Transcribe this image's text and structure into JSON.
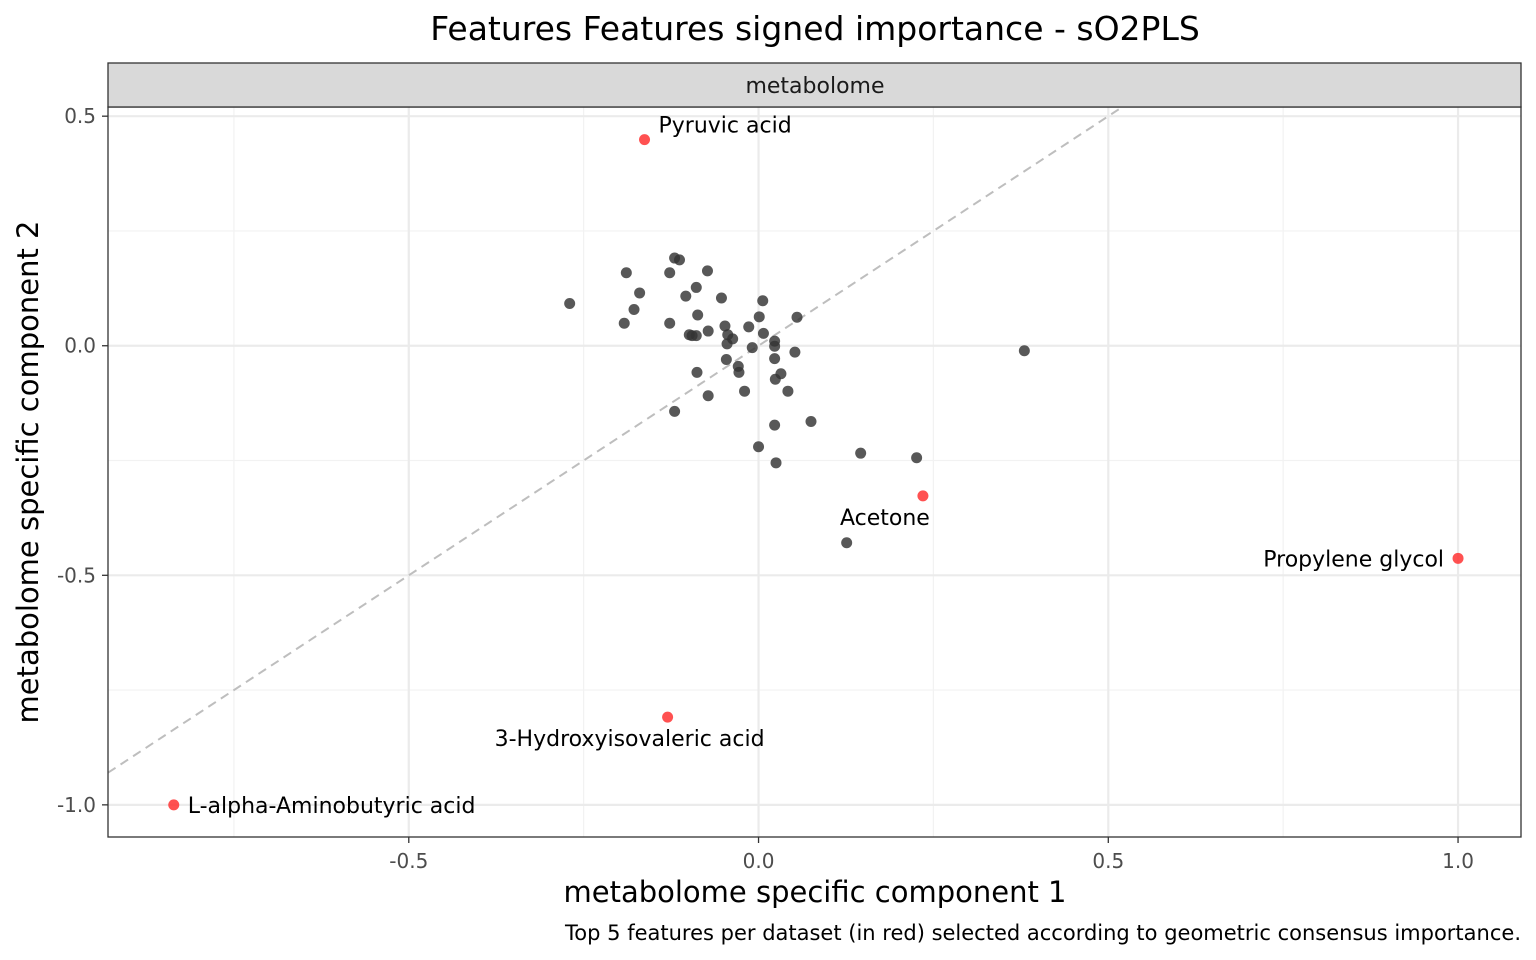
{
  "chart_data": {
    "type": "scatter",
    "title": "Features Features signed importance - sO2PLS",
    "facet": "metabolome",
    "xlabel": "metabolome specific component 1",
    "ylabel": "metabolome specific component 2",
    "caption": "Top 5 features per dataset (in red) selected according to geometric consensus importance.",
    "xlim": [
      -0.93,
      1.09
    ],
    "ylim": [
      -1.07,
      0.52
    ],
    "x_ticks": [
      -0.5,
      0.0,
      0.5,
      1.0
    ],
    "x_tick_labels": [
      "-0.5",
      "0.0",
      "0.5",
      "1.0"
    ],
    "y_ticks": [
      -1.0,
      -0.5,
      0.0,
      0.5
    ],
    "y_tick_labels": [
      "-1.0",
      "-0.5",
      "0.0",
      "0.5"
    ],
    "grid": true,
    "reference_line": {
      "style": "dashed",
      "color": "#bebebe",
      "intercept": 0.0,
      "slope": 1.0
    },
    "colors": {
      "highlight": "#ff3333",
      "default": "#333333"
    },
    "highlighted_points": [
      {
        "label": "Pyruvic acid",
        "x": -0.163,
        "y": 0.449
      },
      {
        "label": "Acetone",
        "x": 0.235,
        "y": -0.327
      },
      {
        "label": "Propylene glycol",
        "x": 1.0,
        "y": -0.463
      },
      {
        "label": "3-Hydroxyisovaleric acid",
        "x": -0.13,
        "y": -0.809
      },
      {
        "label": "L-alpha-Aminobutyric acid",
        "x": -0.836,
        "y": -1.0
      }
    ],
    "points": [
      {
        "x": -0.27,
        "y": 0.092
      },
      {
        "x": -0.189,
        "y": 0.159
      },
      {
        "x": -0.17,
        "y": 0.115
      },
      {
        "x": -0.178,
        "y": 0.079
      },
      {
        "x": -0.192,
        "y": 0.049
      },
      {
        "x": -0.127,
        "y": 0.159
      },
      {
        "x": -0.12,
        "y": 0.191
      },
      {
        "x": -0.113,
        "y": 0.187
      },
      {
        "x": -0.073,
        "y": 0.163
      },
      {
        "x": -0.089,
        "y": 0.127
      },
      {
        "x": -0.104,
        "y": 0.108
      },
      {
        "x": -0.053,
        "y": 0.104
      },
      {
        "x": 0.006,
        "y": 0.098
      },
      {
        "x": -0.087,
        "y": 0.067
      },
      {
        "x": -0.127,
        "y": 0.049
      },
      {
        "x": -0.072,
        "y": 0.032
      },
      {
        "x": -0.099,
        "y": 0.024
      },
      {
        "x": -0.095,
        "y": 0.022
      },
      {
        "x": -0.089,
        "y": 0.022
      },
      {
        "x": -0.048,
        "y": 0.043
      },
      {
        "x": -0.044,
        "y": 0.024
      },
      {
        "x": -0.045,
        "y": 0.004
      },
      {
        "x": -0.037,
        "y": 0.015
      },
      {
        "x": -0.014,
        "y": 0.041
      },
      {
        "x": 0.001,
        "y": 0.063
      },
      {
        "x": 0.055,
        "y": 0.062
      },
      {
        "x": 0.007,
        "y": 0.027
      },
      {
        "x": 0.023,
        "y": 0.01
      },
      {
        "x": 0.023,
        "y": -0.001
      },
      {
        "x": -0.009,
        "y": -0.004
      },
      {
        "x": 0.052,
        "y": -0.014
      },
      {
        "x": 0.023,
        "y": -0.028
      },
      {
        "x": -0.046,
        "y": -0.03
      },
      {
        "x": -0.029,
        "y": -0.045
      },
      {
        "x": -0.028,
        "y": -0.058
      },
      {
        "x": -0.088,
        "y": -0.058
      },
      {
        "x": 0.032,
        "y": -0.061
      },
      {
        "x": 0.024,
        "y": -0.073
      },
      {
        "x": -0.02,
        "y": -0.099
      },
      {
        "x": 0.042,
        "y": -0.099
      },
      {
        "x": -0.072,
        "y": -0.109
      },
      {
        "x": -0.12,
        "y": -0.143
      },
      {
        "x": 0.075,
        "y": -0.165
      },
      {
        "x": 0.023,
        "y": -0.173
      },
      {
        "x": 0.0,
        "y": -0.22
      },
      {
        "x": 0.025,
        "y": -0.255
      },
      {
        "x": 0.146,
        "y": -0.234
      },
      {
        "x": 0.226,
        "y": -0.244
      },
      {
        "x": 0.38,
        "y": -0.011
      },
      {
        "x": 0.126,
        "y": -0.429
      }
    ]
  }
}
